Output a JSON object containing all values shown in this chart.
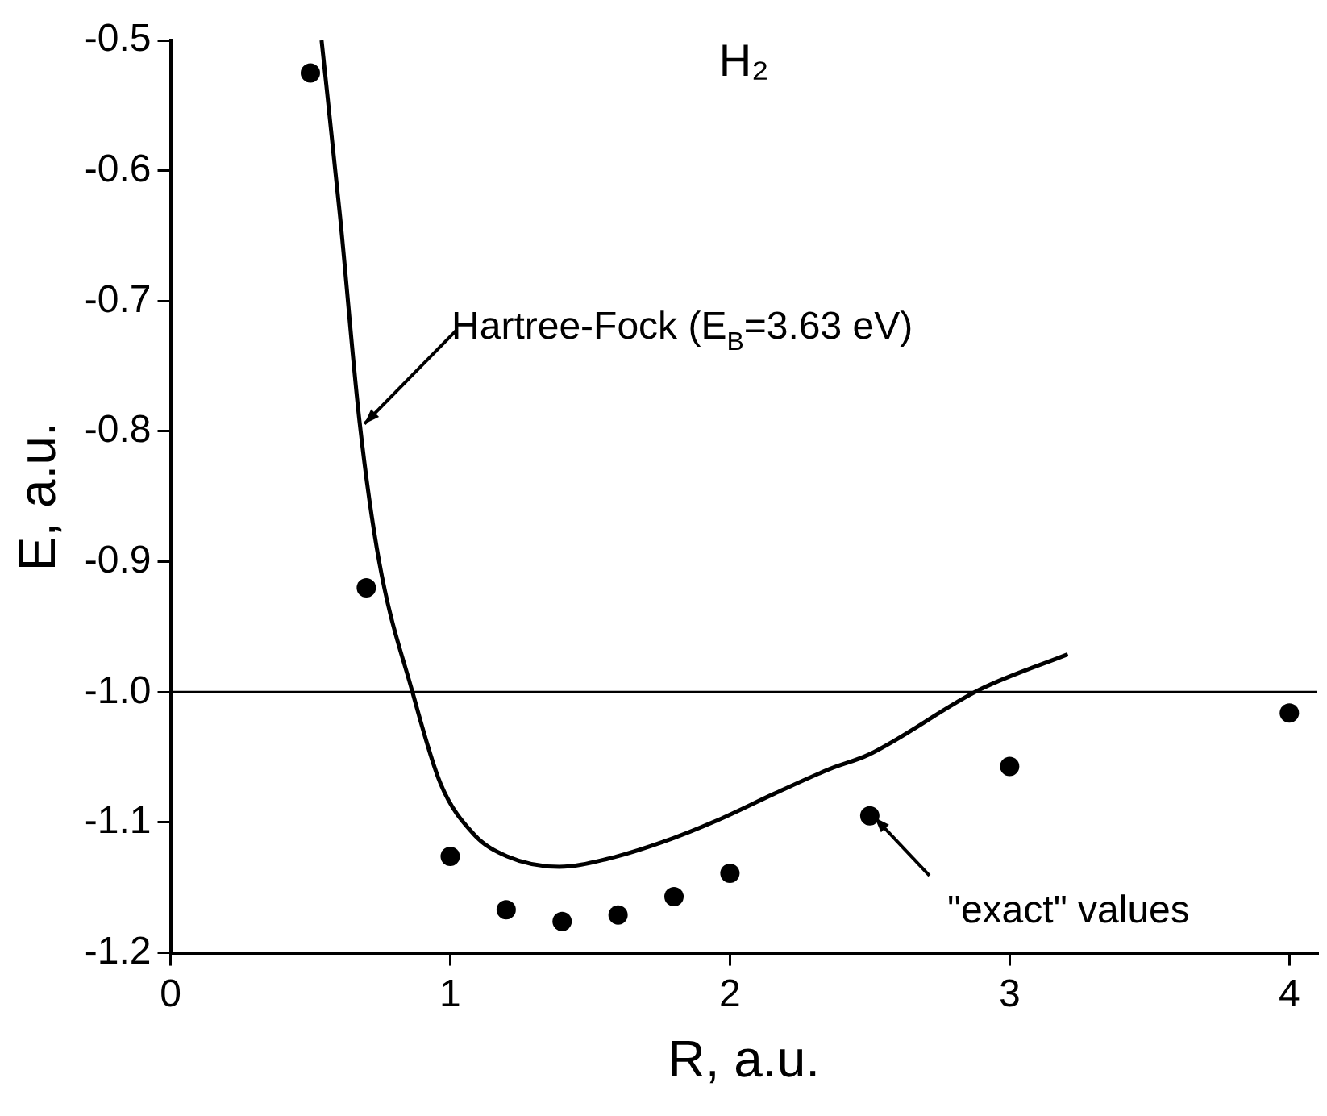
{
  "chart_data": {
    "type": "scatter",
    "title": "H₂",
    "xlabel": "R, a.u.",
    "ylabel": "E, a.u.",
    "xlim": [
      0,
      4.1
    ],
    "xticks": [
      0,
      1,
      2,
      3,
      4
    ],
    "ylim": [
      -1.2,
      -0.5
    ],
    "yticks": [
      {
        "value": -1.2,
        "label": "-1.2"
      },
      {
        "value": -1.1,
        "label": "-1.1"
      },
      {
        "value": -1.0,
        "label": "-1.0"
      },
      {
        "value": -0.9,
        "label": "-0.9"
      },
      {
        "value": -0.8,
        "label": "-0.8"
      },
      {
        "value": -0.7,
        "label": "-0.7"
      },
      {
        "value": -0.6,
        "label": "-0.6"
      },
      {
        "value": -0.5,
        "label": "-0.5"
      }
    ],
    "series": [
      {
        "type": "line",
        "color": "#000000",
        "marker": "none",
        "line_style": "solid",
        "x": [
          0.54,
          0.607,
          0.676,
          0.746,
          0.865,
          0.965,
          1.084,
          1.203,
          1.39,
          1.561,
          1.76,
          1.959,
          2.158,
          2.357,
          2.496,
          2.894,
          3.208
        ],
        "values": [
          -0.5,
          -0.637,
          -0.793,
          -0.9,
          -1.0,
          -1.07,
          -1.109,
          -1.126,
          -1.134,
          -1.128,
          -1.115,
          -1.098,
          -1.078,
          -1.059,
          -1.048,
          -0.998,
          -0.971
        ]
      },
      {
        "type": "scatter",
        "color": "#000000",
        "marker": "circle",
        "x": [
          0.5,
          0.7,
          1.0,
          1.2,
          1.4,
          1.6,
          1.8,
          2.0,
          2.5,
          3.0,
          4.0
        ],
        "values": [
          -0.525,
          -0.92,
          -1.126,
          -1.167,
          -1.176,
          -1.171,
          -1.157,
          -1.139,
          -1.095,
          -1.057,
          -1.016
        ]
      }
    ],
    "ref_lines": [
      {
        "axis": "y",
        "value": -1.0,
        "color": "#000000"
      }
    ],
    "annotations": [
      {
        "text": "Hartree-Fock (E$_{B}$=3.63 eV)",
        "x": 0.676,
        "y": -0.793
      },
      {
        "text": "\"exact\" values",
        "x": 2.5,
        "y": -1.095
      }
    ],
    "grid": false,
    "legend": false
  }
}
